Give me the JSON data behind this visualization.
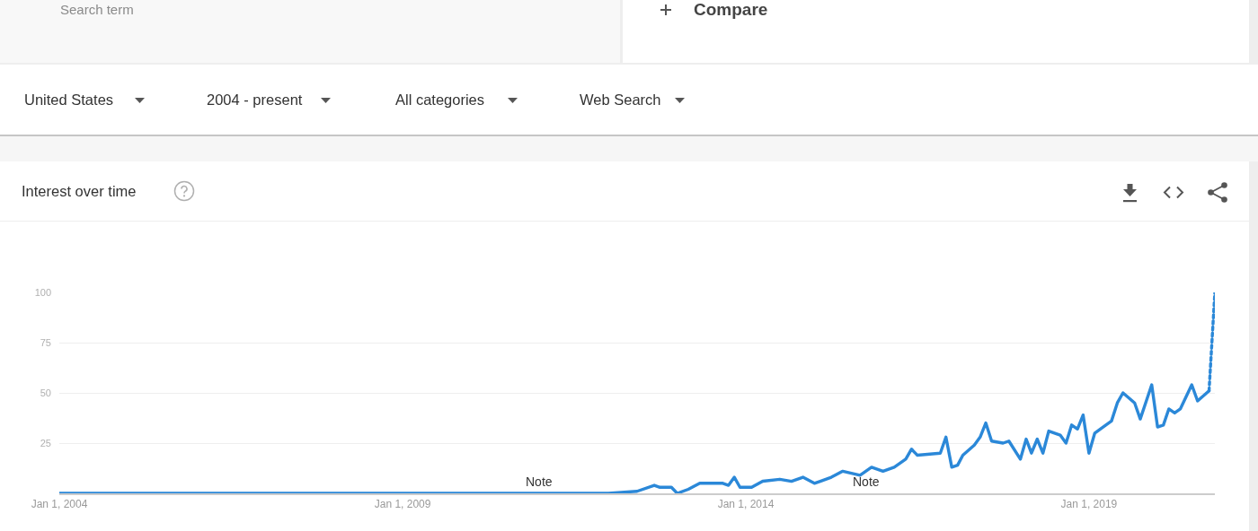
{
  "chart_data": {
    "type": "line",
    "title": "Interest over time",
    "annotations": [
      "Search term",
      "Compare",
      "United States",
      "2004 - present",
      "All categories",
      "Web Search",
      "Note",
      "Note"
    ],
    "series": [
      {
        "color": "#2b88d8",
        "line_style": "solid",
        "x": [
          "2004-01",
          "2012-01",
          "2012-06",
          "2012-09",
          "2012-10",
          "2012-12",
          "2013-01",
          "2013-03",
          "2013-05",
          "2013-09",
          "2013-10",
          "2013-11",
          "2013-12",
          "2014-02",
          "2014-04",
          "2014-07",
          "2014-09",
          "2014-11",
          "2015-01",
          "2015-02",
          "2015-04",
          "2015-06",
          "2015-09",
          "2015-11",
          "2016-01",
          "2016-03",
          "2016-05",
          "2016-06",
          "2016-07",
          "2016-11",
          "2016-12",
          "2017-01",
          "2017-02",
          "2017-03",
          "2017-05",
          "2017-06",
          "2017-07",
          "2017-08",
          "2017-10",
          "2017-11",
          "2018-01",
          "2018-02",
          "2018-03",
          "2018-04",
          "2018-05",
          "2018-06",
          "2018-08",
          "2018-09",
          "2018-10",
          "2018-11",
          "2018-12",
          "2019-01",
          "2019-02",
          "2019-04",
          "2019-05",
          "2019-06",
          "2019-07",
          "2019-09",
          "2019-10",
          "2019-12",
          "2020-01",
          "2020-02",
          "2020-03",
          "2020-04",
          "2020-05",
          "2020-07",
          "2020-08",
          "2020-10"
        ],
        "values": [
          0,
          0,
          1,
          4,
          3,
          3,
          0,
          2,
          5,
          5,
          4,
          8,
          3,
          3,
          6,
          7,
          6,
          8,
          5,
          6,
          8,
          11,
          9,
          13,
          11,
          13,
          17,
          22,
          19,
          20,
          28,
          13,
          14,
          19,
          24,
          28,
          35,
          26,
          25,
          26,
          17,
          27,
          20,
          27,
          20,
          31,
          29,
          25,
          34,
          32,
          39,
          20,
          30,
          34,
          36,
          45,
          50,
          45,
          37,
          54,
          33,
          34,
          42,
          40,
          42,
          54,
          46,
          51
        ]
      },
      {
        "color": "#2b88d8",
        "line_style": "dotted",
        "x": [
          "2020-10",
          "2020-11"
        ],
        "values": [
          51,
          100
        ]
      }
    ],
    "xlim": [
      "2004-01",
      "2020-11"
    ],
    "xticks": [
      {
        "value": "2004-01-01",
        "label": "Jan 1, 2004"
      },
      {
        "value": "2009-01-01",
        "label": "Jan 1, 2009"
      },
      {
        "value": "2014-01-01",
        "label": "Jan 1, 2014"
      },
      {
        "value": "2019-01-01",
        "label": "Jan 1, 2019"
      }
    ],
    "ylim": [
      0,
      100
    ],
    "yticks": [
      25,
      50,
      75,
      100
    ],
    "grid": "y"
  }
}
